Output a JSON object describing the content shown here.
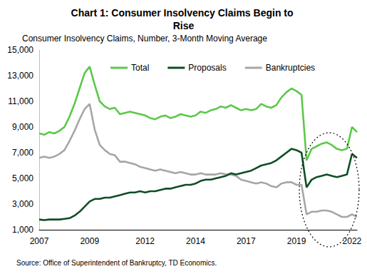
{
  "chart_data": {
    "type": "line",
    "title": "Chart 1: Consumer Insolvency Claims Begin to Rise",
    "subtitle": "Consumer Insolvency Claims, Number, 3-Month Moving Average",
    "source": "Source: Office of Superintendent of Bankruptcy, TD Economics.",
    "categories": [
      "2007",
      null,
      null,
      null,
      null,
      null,
      null,
      null,
      null,
      null,
      "2009",
      null,
      null,
      null,
      null,
      null,
      null,
      null,
      null,
      null,
      null,
      "2012",
      null,
      null,
      null,
      null,
      null,
      null,
      null,
      null,
      null,
      "2014",
      null,
      null,
      null,
      null,
      null,
      null,
      null,
      null,
      null,
      "2017",
      null,
      null,
      null,
      null,
      null,
      null,
      null,
      null,
      null,
      "2019",
      null,
      null,
      null,
      null,
      null,
      null,
      null,
      null,
      null,
      null,
      "2022",
      null
    ],
    "series": [
      {
        "name": "Total",
        "color": "#5cc84a",
        "values": [
          8500,
          8400,
          8600,
          8500,
          8700,
          9000,
          9800,
          10800,
          12000,
          13200,
          13700,
          12300,
          11000,
          10600,
          10400,
          10500,
          10000,
          10100,
          10200,
          10100,
          10000,
          9900,
          9700,
          9600,
          9800,
          9900,
          9700,
          9800,
          10000,
          9900,
          9800,
          9900,
          10200,
          10100,
          10300,
          10400,
          10600,
          10500,
          10700,
          10500,
          10300,
          10400,
          10300,
          10400,
          10800,
          10600,
          10500,
          10700,
          11300,
          11700,
          12000,
          11800,
          11500,
          6400,
          7300,
          7500,
          7700,
          7800,
          7600,
          7300,
          7200,
          7300,
          9000,
          8600
        ]
      },
      {
        "name": "Proposals",
        "color": "#0f4d25",
        "values": [
          1800,
          1750,
          1800,
          1800,
          1800,
          1850,
          1900,
          2100,
          2400,
          2800,
          3200,
          3400,
          3400,
          3500,
          3500,
          3600,
          3700,
          3800,
          3900,
          3900,
          4000,
          3900,
          4000,
          4000,
          4100,
          4200,
          4200,
          4300,
          4400,
          4500,
          4500,
          4600,
          4800,
          4900,
          4900,
          5000,
          5100,
          5200,
          5400,
          5300,
          5400,
          5500,
          5600,
          5800,
          6000,
          6100,
          6200,
          6400,
          6700,
          7000,
          7300,
          7200,
          7000,
          4300,
          4900,
          5100,
          5200,
          5300,
          5200,
          5100,
          5200,
          5300,
          6900,
          6600
        ]
      },
      {
        "name": "Bankruptcies",
        "color": "#a6a6a6",
        "values": [
          6600,
          6700,
          6600,
          6700,
          6900,
          7200,
          7900,
          8700,
          9600,
          10400,
          10800,
          8800,
          7600,
          7200,
          6900,
          6800,
          6300,
          6300,
          6200,
          6100,
          5900,
          5800,
          5700,
          5600,
          5700,
          5600,
          5500,
          5400,
          5500,
          5400,
          5300,
          5300,
          5400,
          5300,
          5300,
          5300,
          5400,
          5300,
          5300,
          5200,
          4900,
          4800,
          4700,
          4600,
          4700,
          4600,
          4400,
          4300,
          4600,
          4700,
          4700,
          4500,
          4500,
          2200,
          2400,
          2400,
          2500,
          2500,
          2400,
          2200,
          2000,
          2000,
          2200,
          2000
        ]
      }
    ],
    "ylim": [
      1000,
      15000
    ],
    "yticks": [
      {
        "value": 1000,
        "label": "1,000"
      },
      {
        "value": 3000,
        "label": "3,000"
      },
      {
        "value": 5000,
        "label": "5,000"
      },
      {
        "value": 7000,
        "label": "7,000"
      },
      {
        "value": 9000,
        "label": "9,000"
      },
      {
        "value": 11000,
        "label": "11,000"
      },
      {
        "value": 13000,
        "label": "13,000"
      },
      {
        "value": 15000,
        "label": "15,000"
      }
    ],
    "grid": false,
    "legend": "top"
  }
}
